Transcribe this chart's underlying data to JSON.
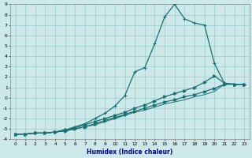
{
  "xlabel": "Humidex (Indice chaleur)",
  "xlim": [
    -0.5,
    23.5
  ],
  "ylim": [
    -4,
    9
  ],
  "bg_color": "#cce8e8",
  "grid_color": "#99cccc",
  "line_color": "#1a7070",
  "line1_x": [
    0,
    1,
    2,
    3,
    4,
    5,
    6,
    7,
    8,
    9,
    10,
    11,
    12,
    13,
    14,
    15,
    16,
    17,
    18,
    19,
    20,
    21,
    22,
    23
  ],
  "line1_y": [
    -3.5,
    -3.5,
    -3.4,
    -3.4,
    -3.3,
    -3.1,
    -2.8,
    -2.5,
    -2.0,
    -1.5,
    -0.8,
    0.2,
    2.5,
    2.9,
    5.2,
    7.8,
    9.0,
    7.6,
    7.2,
    7.0,
    3.3,
    1.4,
    1.3,
    1.3
  ],
  "line2_x": [
    0,
    1,
    2,
    3,
    4,
    5,
    6,
    7,
    8,
    9,
    10,
    11,
    12,
    13,
    14,
    15,
    16,
    17,
    18,
    19,
    20,
    21,
    22,
    23
  ],
  "line2_y": [
    -3.5,
    -3.5,
    -3.4,
    -3.4,
    -3.3,
    -3.1,
    -2.9,
    -2.6,
    -2.3,
    -2.0,
    -1.7,
    -1.4,
    -1.0,
    -0.7,
    -0.3,
    0.1,
    0.4,
    0.7,
    1.0,
    1.5,
    2.1,
    1.4,
    1.3,
    1.3
  ],
  "line3_x": [
    0,
    1,
    2,
    3,
    4,
    5,
    6,
    7,
    8,
    9,
    10,
    11,
    12,
    13,
    14,
    15,
    16,
    17,
    18,
    19,
    20,
    21,
    22,
    23
  ],
  "line3_y": [
    -3.5,
    -3.5,
    -3.4,
    -3.4,
    -3.3,
    -3.2,
    -3.0,
    -2.8,
    -2.5,
    -2.2,
    -1.9,
    -1.6,
    -1.3,
    -1.0,
    -0.7,
    -0.4,
    -0.2,
    0.1,
    0.3,
    0.6,
    0.9,
    1.3,
    1.3,
    1.3
  ],
  "line4_x": [
    0,
    1,
    2,
    3,
    4,
    5,
    6,
    7,
    8,
    9,
    10,
    11,
    12,
    13,
    14,
    15,
    16,
    17,
    18,
    19,
    20,
    21,
    22,
    23
  ],
  "line4_y": [
    -3.5,
    -3.5,
    -3.4,
    -3.4,
    -3.3,
    -3.2,
    -3.0,
    -2.8,
    -2.6,
    -2.3,
    -2.0,
    -1.7,
    -1.4,
    -1.2,
    -0.9,
    -0.6,
    -0.4,
    -0.2,
    0.1,
    0.3,
    0.6,
    1.3,
    1.3,
    1.3
  ]
}
